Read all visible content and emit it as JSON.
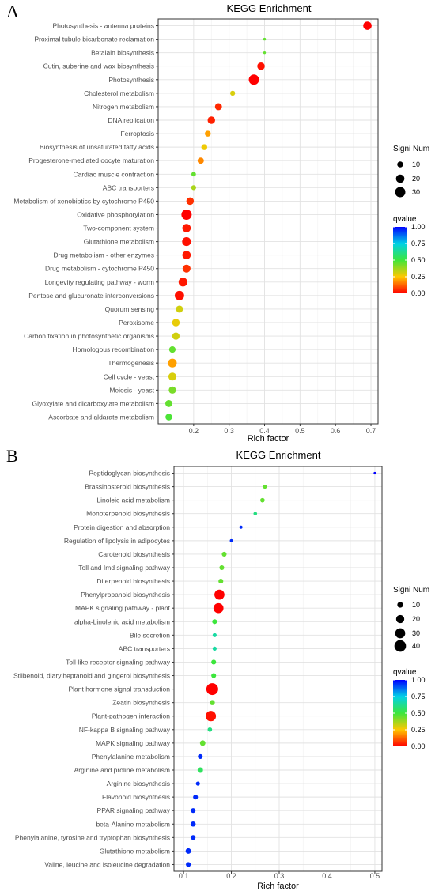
{
  "chart_data": [
    {
      "type": "scatter",
      "panel_label": "A",
      "title": "KEGG Enrichment",
      "xlabel": "Rich factor",
      "ylabel": "",
      "xlim": [
        0.1,
        0.72
      ],
      "xticks": [
        "0.2",
        "0.3",
        "0.4",
        "0.5",
        "0.6",
        "0.7"
      ],
      "grid": true,
      "size_legend": {
        "title": "Signi Num",
        "values": [
          10,
          20,
          30
        ]
      },
      "color_legend": {
        "title": "qvalue",
        "ticks": [
          "1.00",
          "0.75",
          "0.50",
          "0.25",
          "0.00"
        ],
        "low_color": "#ff0000",
        "high_color": "#0000ff"
      },
      "points": [
        {
          "term": "Photosynthesis - antenna proteins",
          "rich": 0.69,
          "count": 20,
          "q": 0.0
        },
        {
          "term": "Proximal tubule bicarbonate reclamation",
          "rich": 0.4,
          "count": 2,
          "q": 0.45
        },
        {
          "term": "Betalain biosynthesis",
          "rich": 0.4,
          "count": 2,
          "q": 0.45
        },
        {
          "term": "Cutin, suberine and wax biosynthesis",
          "rich": 0.39,
          "count": 16,
          "q": 0.02
        },
        {
          "term": "Photosynthesis",
          "rich": 0.37,
          "count": 30,
          "q": 0.0
        },
        {
          "term": "Cholesterol metabolism",
          "rich": 0.31,
          "count": 7,
          "q": 0.3
        },
        {
          "term": "Nitrogen metabolism",
          "rich": 0.27,
          "count": 14,
          "q": 0.05
        },
        {
          "term": "DNA replication",
          "rich": 0.25,
          "count": 16,
          "q": 0.04
        },
        {
          "term": "Ferroptosis",
          "rich": 0.24,
          "count": 10,
          "q": 0.2
        },
        {
          "term": "Biosynthesis of unsaturated fatty acids",
          "rich": 0.23,
          "count": 10,
          "q": 0.27
        },
        {
          "term": "Progesterone-mediated oocyte maturation",
          "rich": 0.22,
          "count": 11,
          "q": 0.17
        },
        {
          "term": "Cardiac muscle contraction",
          "rich": 0.2,
          "count": 6,
          "q": 0.45
        },
        {
          "term": "ABC transporters",
          "rich": 0.2,
          "count": 7,
          "q": 0.36
        },
        {
          "term": "Metabolism of xenobiotics by cytochrome P450",
          "rich": 0.19,
          "count": 16,
          "q": 0.06
        },
        {
          "term": "Oxidative phosphorylation",
          "rich": 0.18,
          "count": 30,
          "q": 0.0
        },
        {
          "term": "Two-component system",
          "rich": 0.18,
          "count": 20,
          "q": 0.03
        },
        {
          "term": "Glutathione metabolism",
          "rich": 0.18,
          "count": 22,
          "q": 0.02
        },
        {
          "term": "Drug metabolism - other enzymes",
          "rich": 0.18,
          "count": 20,
          "q": 0.03
        },
        {
          "term": "Drug metabolism - cytochrome P450",
          "rich": 0.18,
          "count": 18,
          "q": 0.06
        },
        {
          "term": "Longevity regulating pathway - worm",
          "rich": 0.17,
          "count": 22,
          "q": 0.03
        },
        {
          "term": "Pentose and glucuronate interconversions",
          "rich": 0.16,
          "count": 25,
          "q": 0.02
        },
        {
          "term": "Quorum sensing",
          "rich": 0.16,
          "count": 14,
          "q": 0.31
        },
        {
          "term": "Peroxisome",
          "rich": 0.15,
          "count": 16,
          "q": 0.28
        },
        {
          "term": "Carbon fixation in photosynthetic organisms",
          "rich": 0.15,
          "count": 15,
          "q": 0.31
        },
        {
          "term": "Homologous recombination",
          "rich": 0.14,
          "count": 12,
          "q": 0.45
        },
        {
          "term": "Thermogenesis",
          "rich": 0.14,
          "count": 22,
          "q": 0.2
        },
        {
          "term": "Cell cycle - yeast",
          "rich": 0.14,
          "count": 18,
          "q": 0.3
        },
        {
          "term": "Meiosis - yeast",
          "rich": 0.14,
          "count": 15,
          "q": 0.42
        },
        {
          "term": "Glyoxylate and dicarboxylate metabolism",
          "rich": 0.13,
          "count": 14,
          "q": 0.45
        },
        {
          "term": "Ascorbate and aldarate metabolism",
          "rich": 0.13,
          "count": 13,
          "q": 0.48
        }
      ]
    },
    {
      "type": "scatter",
      "panel_label": "B",
      "title": "KEGG Enrichment",
      "xlabel": "Rich factor",
      "ylabel": "",
      "xlim": [
        0.08,
        0.515
      ],
      "xticks": [
        "0.1",
        "0.2",
        "0.3",
        "0.4",
        "0.5"
      ],
      "grid": true,
      "size_legend": {
        "title": "Signi Num",
        "values": [
          10,
          20,
          30,
          40
        ]
      },
      "color_legend": {
        "title": "qvalue",
        "ticks": [
          "1.00",
          "0.75",
          "0.50",
          "0.25",
          "0.00"
        ],
        "low_color": "#ff0000",
        "high_color": "#0000ff"
      },
      "points": [
        {
          "term": "Peptidoglycan biosynthesis",
          "rich": 0.5,
          "count": 1,
          "q": 1.0
        },
        {
          "term": "Brassinosteroid biosynthesis",
          "rich": 0.27,
          "count": 5,
          "q": 0.45
        },
        {
          "term": "Linoleic acid metabolism",
          "rich": 0.265,
          "count": 6,
          "q": 0.45
        },
        {
          "term": "Monoterpenoid biosynthesis",
          "rich": 0.25,
          "count": 4,
          "q": 0.6
        },
        {
          "term": "Protein digestion and absorption",
          "rich": 0.22,
          "count": 3,
          "q": 0.95
        },
        {
          "term": "Regulation of lipolysis in adipocytes",
          "rich": 0.2,
          "count": 3,
          "q": 0.95
        },
        {
          "term": "Carotenoid biosynthesis",
          "rich": 0.185,
          "count": 7,
          "q": 0.45
        },
        {
          "term": "Toll and Imd signaling pathway",
          "rich": 0.18,
          "count": 7,
          "q": 0.45
        },
        {
          "term": "Diterpenoid biosynthesis",
          "rich": 0.178,
          "count": 7,
          "q": 0.45
        },
        {
          "term": "Phenylpropanoid biosynthesis",
          "rich": 0.175,
          "count": 30,
          "q": 0.0
        },
        {
          "term": "MAPK signaling pathway - plant",
          "rich": 0.173,
          "count": 30,
          "q": 0.0
        },
        {
          "term": "alpha-Linolenic acid metabolism",
          "rich": 0.165,
          "count": 7,
          "q": 0.5
        },
        {
          "term": "Bile secretion",
          "rich": 0.165,
          "count": 5,
          "q": 0.65
        },
        {
          "term": "ABC transporters",
          "rich": 0.165,
          "count": 5,
          "q": 0.65
        },
        {
          "term": "Toll-like receptor signaling pathway",
          "rich": 0.163,
          "count": 7,
          "q": 0.5
        },
        {
          "term": "Stilbenoid, diarylheptanoid and gingerol biosynthesis",
          "rich": 0.163,
          "count": 7,
          "q": 0.5
        },
        {
          "term": "Plant hormone signal transduction",
          "rich": 0.16,
          "count": 42,
          "q": 0.0
        },
        {
          "term": "Zeatin biosynthesis",
          "rich": 0.16,
          "count": 8,
          "q": 0.45
        },
        {
          "term": "Plant-pathogen interaction",
          "rich": 0.157,
          "count": 32,
          "q": 0.02
        },
        {
          "term": "NF-kappa B signaling pathway",
          "rich": 0.155,
          "count": 6,
          "q": 0.6
        },
        {
          "term": "MAPK signaling pathway",
          "rich": 0.14,
          "count": 9,
          "q": 0.45
        },
        {
          "term": "Phenylalanine metabolism",
          "rich": 0.135,
          "count": 7,
          "q": 0.95
        },
        {
          "term": "Arginine and proline metabolism",
          "rich": 0.135,
          "count": 9,
          "q": 0.55
        },
        {
          "term": "Arginine biosynthesis",
          "rich": 0.13,
          "count": 5,
          "q": 0.95
        },
        {
          "term": "Flavonoid biosynthesis",
          "rich": 0.125,
          "count": 7,
          "q": 0.95
        },
        {
          "term": "PPAR signaling pathway",
          "rich": 0.12,
          "count": 7,
          "q": 0.95
        },
        {
          "term": "beta-Alanine metabolism",
          "rich": 0.12,
          "count": 8,
          "q": 0.95
        },
        {
          "term": "Phenylalanine, tyrosine and tryptophan biosynthesis",
          "rich": 0.12,
          "count": 7,
          "q": 0.95
        },
        {
          "term": "Glutathione metabolism",
          "rich": 0.11,
          "count": 9,
          "q": 0.95
        },
        {
          "term": "Valine, leucine and isoleucine degradation",
          "rich": 0.11,
          "count": 7,
          "q": 0.95
        }
      ]
    }
  ]
}
